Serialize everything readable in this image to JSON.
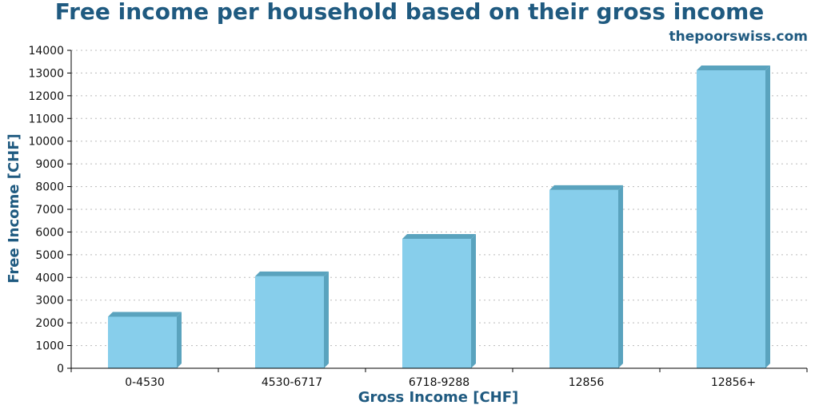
{
  "chart_data": {
    "type": "bar",
    "title": "Free income per household based on their gross income",
    "source": "thepoorswiss.com",
    "xlabel": "Gross Income [CHF]",
    "ylabel": "Free Income [CHF]",
    "categories": [
      "0-4530",
      "4530-6717",
      "6718-9288",
      "12856",
      "12856+"
    ],
    "values": [
      2270,
      4050,
      5700,
      7850,
      13120
    ],
    "ylim": [
      0,
      14000
    ],
    "ytick_step": 1000,
    "grid": true,
    "legend": "none",
    "colors": {
      "bar_front": "#87ceeb",
      "bar_side": "#5aa3be",
      "title": "#1f5a80",
      "grid": "#bbbbbb"
    }
  }
}
